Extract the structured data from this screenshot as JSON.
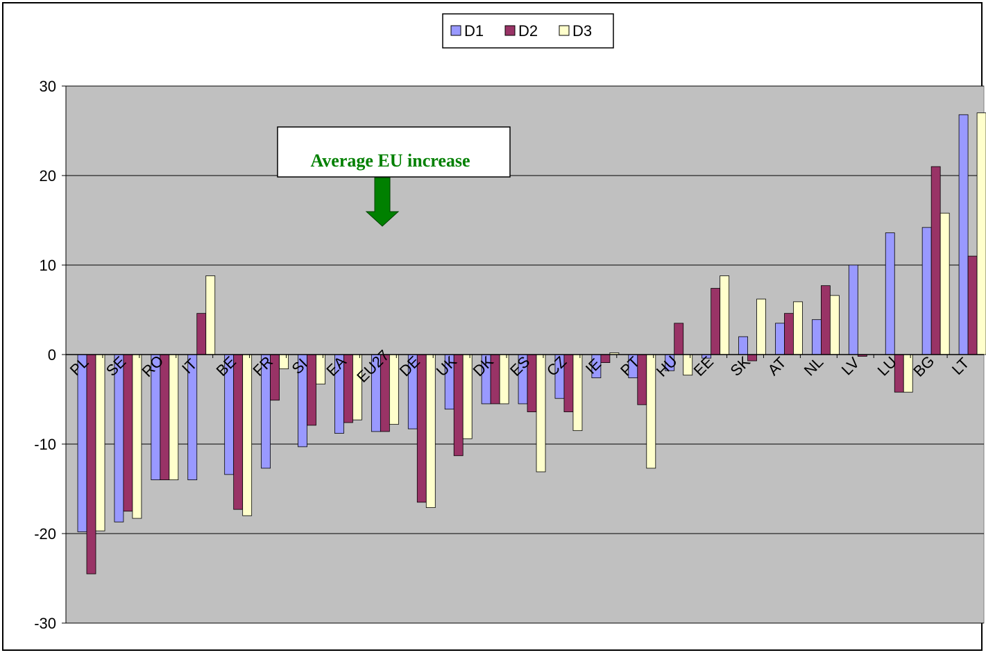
{
  "chart_data": {
    "type": "bar",
    "categories": [
      "PL",
      "SE",
      "RO",
      "IT",
      "BE",
      "FR",
      "SI",
      "EA",
      "EU27",
      "DE",
      "UK",
      "DK",
      "ES",
      "CZ",
      "IE",
      "PT",
      "HU",
      "EE",
      "SK",
      "AT",
      "NL",
      "LV",
      "LU",
      "BG",
      "LT"
    ],
    "series": [
      {
        "name": "D1",
        "color": "#9999ff",
        "values": [
          -19.8,
          -18.7,
          -14.0,
          -14.0,
          -13.4,
          -12.7,
          -10.3,
          -8.8,
          -8.6,
          -8.3,
          -6.1,
          -5.5,
          -5.5,
          -4.9,
          -2.6,
          -2.6,
          -1.8,
          -0.4,
          2.0,
          3.5,
          3.9,
          10.0,
          13.6,
          14.2,
          26.8
        ]
      },
      {
        "name": "D2",
        "color": "#993366",
        "values": [
          -24.5,
          -17.5,
          -14.0,
          4.6,
          -17.3,
          -5.1,
          -7.9,
          -7.6,
          -8.6,
          -16.5,
          -11.3,
          -5.5,
          -6.4,
          -6.4,
          -0.9,
          -5.6,
          3.5,
          7.4,
          -0.7,
          4.6,
          7.7,
          -0.2,
          -4.2,
          21.0,
          11.0
        ]
      },
      {
        "name": "D3",
        "color": "#ffffcc",
        "values": [
          -19.7,
          -18.3,
          -14.0,
          8.8,
          -18.0,
          -1.6,
          -3.3,
          -7.3,
          -7.8,
          -17.1,
          -9.4,
          -5.5,
          -13.1,
          -8.5,
          0.2,
          -12.7,
          -2.3,
          8.8,
          6.2,
          5.9,
          6.6,
          null,
          -4.2,
          15.8,
          27.0
        ]
      }
    ],
    "ylim": [
      -30,
      30
    ],
    "yticks": [
      30,
      20,
      10,
      0,
      -10,
      -20,
      -30
    ],
    "grid": true,
    "plot_background": "#c0c0c0",
    "legend_position": "top-center",
    "annotation": {
      "text": "Average EU increase",
      "color": "#008000",
      "arrow": "down",
      "category": "DE"
    }
  }
}
